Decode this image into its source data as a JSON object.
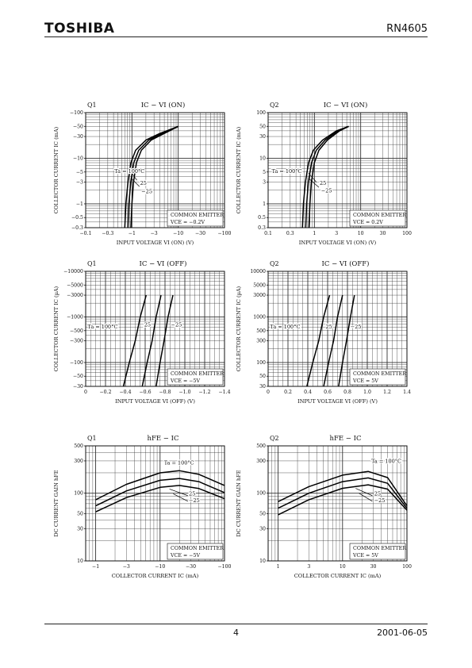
{
  "header": {
    "brand": "TOSHIBA",
    "part_number": "RN4605"
  },
  "footer": {
    "page": "4",
    "date": "2001-06-05"
  },
  "chart_data": [
    {
      "type": "line",
      "panel": "Q1",
      "title": "IC − VI (ON)",
      "xlabel": "INPUT VOLTAGE  VI (ON)  (V)",
      "ylabel": "COLLECTOR CURRENT  IC  (mA)",
      "xscale": "log",
      "yscale": "log",
      "xlim": [
        0.1,
        100
      ],
      "ylim": [
        0.3,
        100
      ],
      "x_ticks": [
        0.1,
        0.3,
        1,
        3,
        10,
        30,
        100
      ],
      "x_tick_labels": [
        "−0.1",
        "−0.3",
        "−1",
        "−3",
        "−10",
        "−30",
        "−100"
      ],
      "y_ticks": [
        0.3,
        0.5,
        1,
        3,
        5,
        10,
        30,
        50,
        100
      ],
      "y_tick_labels": [
        "−0.3",
        "−0.5",
        "−1",
        "−3",
        "−5",
        "−10",
        "−30",
        "−50",
        "−100"
      ],
      "conditions": [
        "COMMON EMITTER",
        "VCE = −0.2V"
      ],
      "series": [
        {
          "name": "Ta = 100°C",
          "points": [
            [
              0.7,
              0.3
            ],
            [
              0.74,
              1
            ],
            [
              0.82,
              3
            ],
            [
              0.95,
              8
            ],
            [
              1.2,
              15
            ],
            [
              2,
              25
            ],
            [
              4,
              35
            ],
            [
              10,
              50
            ]
          ]
        },
        {
          "name": "25",
          "points": [
            [
              0.82,
              0.3
            ],
            [
              0.86,
              1
            ],
            [
              0.94,
              3
            ],
            [
              1.1,
              8
            ],
            [
              1.4,
              15
            ],
            [
              2.3,
              25
            ],
            [
              4.5,
              35
            ],
            [
              10,
              50
            ]
          ]
        },
        {
          "name": "−25",
          "points": [
            [
              0.95,
              0.3
            ],
            [
              1.0,
              1
            ],
            [
              1.08,
              3
            ],
            [
              1.25,
              8
            ],
            [
              1.6,
              15
            ],
            [
              2.6,
              25
            ],
            [
              5,
              35
            ],
            [
              10,
              50
            ]
          ]
        }
      ],
      "labels": [
        {
          "text": "Ta = 100°C",
          "x": 0.42,
          "y": 4.8
        },
        {
          "text": "25",
          "x": 1.5,
          "y": 2.6
        },
        {
          "text": "−25",
          "x": 1.6,
          "y": 1.7
        }
      ],
      "pointers": [
        {
          "from": [
            0.98,
            4.8
          ],
          "to": [
            1.28,
            3.3
          ]
        },
        {
          "from": [
            1.0,
            3.5
          ],
          "to": [
            1.45,
            2.4
          ]
        }
      ]
    },
    {
      "type": "line",
      "panel": "Q2",
      "title": "IC − VI (ON)",
      "xlabel": "INPUT VOLTAGE  VI (ON)  (V)",
      "ylabel": "COLLECTOR CURRENT  IC  (mA)",
      "xscale": "log",
      "yscale": "log",
      "xlim": [
        0.1,
        100
      ],
      "ylim": [
        0.3,
        100
      ],
      "x_ticks": [
        0.1,
        0.3,
        1,
        3,
        10,
        30,
        100
      ],
      "x_tick_labels": [
        "0.1",
        "0.3",
        "1",
        "3",
        "10",
        "30",
        "100"
      ],
      "y_ticks": [
        0.3,
        0.5,
        1,
        3,
        5,
        10,
        30,
        50,
        100
      ],
      "y_tick_labels": [
        "0.3",
        "0.5",
        "1",
        "3",
        "5",
        "10",
        "30",
        "50",
        "100"
      ],
      "conditions": [
        "COMMON EMITTER",
        "VCE = 0.2V"
      ],
      "series": [
        {
          "name": "Ta = 100°C",
          "points": [
            [
              0.55,
              0.3
            ],
            [
              0.58,
              1
            ],
            [
              0.64,
              3
            ],
            [
              0.75,
              8
            ],
            [
              0.95,
              15
            ],
            [
              1.5,
              25
            ],
            [
              3,
              40
            ],
            [
              5.5,
              50
            ]
          ]
        },
        {
          "name": "25",
          "points": [
            [
              0.65,
              0.3
            ],
            [
              0.68,
              1
            ],
            [
              0.74,
              3
            ],
            [
              0.87,
              8
            ],
            [
              1.1,
              15
            ],
            [
              1.7,
              25
            ],
            [
              3.2,
              40
            ],
            [
              5.5,
              50
            ]
          ]
        },
        {
          "name": "−25",
          "points": [
            [
              0.76,
              0.3
            ],
            [
              0.8,
              1
            ],
            [
              0.86,
              3
            ],
            [
              1.0,
              8
            ],
            [
              1.25,
              15
            ],
            [
              1.9,
              25
            ],
            [
              3.5,
              40
            ],
            [
              5.5,
              50
            ]
          ]
        }
      ],
      "labels": [
        {
          "text": "Ta = 100°C",
          "x": 0.12,
          "y": 4.8
        },
        {
          "text": "25",
          "x": 1.3,
          "y": 2.6
        },
        {
          "text": "−25",
          "x": 1.4,
          "y": 1.8
        }
      ],
      "pointers": [
        {
          "from": [
            0.74,
            4.8
          ],
          "to": [
            1.1,
            3.0
          ]
        },
        {
          "from": [
            0.78,
            3.5
          ],
          "to": [
            1.25,
            2.3
          ]
        }
      ]
    },
    {
      "type": "line",
      "panel": "Q1",
      "title": "IC − VI (OFF)",
      "xlabel": "INPUT VOLTAGE  VI (OFF)  (V)",
      "ylabel": "COLLECTOR CURRENT  IC  (µA)",
      "xscale": "linear",
      "yscale": "log",
      "xlim": [
        0,
        1.4
      ],
      "ylim": [
        30,
        10000
      ],
      "x_ticks": [
        0,
        0.2,
        0.4,
        0.6,
        0.8,
        1.0,
        1.2,
        1.4
      ],
      "x_tick_labels": [
        "0",
        "−0.2",
        "−0.4",
        "−0.6",
        "−0.8",
        "−1.0",
        "−1.2",
        "−1.4"
      ],
      "y_ticks": [
        30,
        50,
        100,
        300,
        500,
        1000,
        3000,
        5000,
        10000
      ],
      "y_tick_labels": [
        "−30",
        "−50",
        "−100",
        "−300",
        "−500",
        "−1000",
        "−3000",
        "−5000",
        "−10000"
      ],
      "conditions": [
        "COMMON EMITTER",
        "VCE = −5V"
      ],
      "series": [
        {
          "name": "Ta = 100°C",
          "points": [
            [
              0.38,
              30
            ],
            [
              0.44,
              100
            ],
            [
              0.5,
              300
            ],
            [
              0.55,
              1000
            ],
            [
              0.61,
              3000
            ]
          ]
        },
        {
          "name": "25",
          "points": [
            [
              0.57,
              30
            ],
            [
              0.62,
              100
            ],
            [
              0.67,
              300
            ],
            [
              0.71,
              1000
            ],
            [
              0.76,
              3000
            ]
          ]
        },
        {
          "name": "−25",
          "points": [
            [
              0.71,
              30
            ],
            [
              0.75,
              100
            ],
            [
              0.79,
              300
            ],
            [
              0.83,
              1000
            ],
            [
              0.88,
              3000
            ]
          ]
        }
      ],
      "labels": [
        {
          "text": "Ta = 100°C",
          "x": 0.02,
          "y": 560
        },
        {
          "text": "25",
          "x": 0.59,
          "y": 620
        },
        {
          "text": "−25",
          "x": 0.86,
          "y": 620
        }
      ],
      "pointers": []
    },
    {
      "type": "line",
      "panel": "Q2",
      "title": "IC − VI (OFF)",
      "xlabel": "INPUT VOLTAGE  VI (OFF)  (V)",
      "ylabel": "COLLECTOR CURRENT  IC  (µA)",
      "xscale": "linear",
      "yscale": "log",
      "xlim": [
        0,
        1.4
      ],
      "ylim": [
        30,
        10000
      ],
      "x_ticks": [
        0,
        0.2,
        0.4,
        0.6,
        0.8,
        1.0,
        1.2,
        1.4
      ],
      "x_tick_labels": [
        "0",
        "0.2",
        "0.4",
        "0.6",
        "0.8",
        "1.0",
        "1.2",
        "1.4"
      ],
      "y_ticks": [
        30,
        50,
        100,
        300,
        500,
        1000,
        3000,
        5000,
        10000
      ],
      "y_tick_labels": [
        "30",
        "50",
        "100",
        "300",
        "500",
        "1000",
        "3000",
        "5000",
        "10000"
      ],
      "conditions": [
        "COMMON EMITTER",
        "VCE = 5V"
      ],
      "series": [
        {
          "name": "Ta = 100°C",
          "points": [
            [
              0.39,
              30
            ],
            [
              0.45,
              100
            ],
            [
              0.51,
              300
            ],
            [
              0.56,
              1000
            ],
            [
              0.62,
              3000
            ]
          ]
        },
        {
          "name": "25",
          "points": [
            [
              0.56,
              30
            ],
            [
              0.61,
              100
            ],
            [
              0.66,
              300
            ],
            [
              0.7,
              1000
            ],
            [
              0.75,
              3000
            ]
          ]
        },
        {
          "name": "−25",
          "points": [
            [
              0.71,
              30
            ],
            [
              0.75,
              100
            ],
            [
              0.79,
              300
            ],
            [
              0.83,
              1000
            ],
            [
              0.87,
              3000
            ]
          ]
        }
      ],
      "labels": [
        {
          "text": "Ta = 100°C",
          "x": 0.02,
          "y": 560
        },
        {
          "text": "25",
          "x": 0.58,
          "y": 560
        },
        {
          "text": "−25",
          "x": 0.83,
          "y": 560
        }
      ],
      "pointers": []
    },
    {
      "type": "line",
      "panel": "Q1",
      "title": "hFE − IC",
      "xlabel": "COLLECTOR CURRENT  IC  (mA)",
      "ylabel": "DC CURRENT GAIN  hFE",
      "xscale": "log",
      "yscale": "log",
      "xlim": [
        0.7,
        100
      ],
      "ylim": [
        10,
        500
      ],
      "x_ticks": [
        1,
        3,
        10,
        30,
        100
      ],
      "x_tick_labels": [
        "−1",
        "−3",
        "−10",
        "−30",
        "−100"
      ],
      "y_ticks": [
        10,
        30,
        50,
        100,
        300,
        500
      ],
      "y_tick_labels": [
        "10",
        "30",
        "50",
        "100",
        "300",
        "500"
      ],
      "conditions": [
        "COMMON EMITTER",
        "VCE = −5V"
      ],
      "series": [
        {
          "name": "Ta = 100°C",
          "points": [
            [
              1,
              80
            ],
            [
              3,
              135
            ],
            [
              10,
              200
            ],
            [
              20,
              215
            ],
            [
              40,
              190
            ],
            [
              100,
              130
            ]
          ]
        },
        {
          "name": "25",
          "points": [
            [
              1,
              65
            ],
            [
              3,
              108
            ],
            [
              10,
              155
            ],
            [
              20,
              165
            ],
            [
              40,
              148
            ],
            [
              100,
              102
            ]
          ]
        },
        {
          "name": "−25",
          "points": [
            [
              1,
              53
            ],
            [
              3,
              86
            ],
            [
              10,
              122
            ],
            [
              20,
              130
            ],
            [
              40,
              117
            ],
            [
              100,
              83
            ]
          ]
        }
      ],
      "labels": [
        {
          "text": "Ta = 100°C",
          "x": 11.5,
          "y": 265
        },
        {
          "text": "25",
          "x": 28,
          "y": 92
        },
        {
          "text": "−25",
          "x": 28,
          "y": 74
        }
      ],
      "pointers": [
        {
          "from": [
            14,
            115
          ],
          "to": [
            27,
            92
          ]
        },
        {
          "from": [
            16,
            98
          ],
          "to": [
            27,
            76
          ]
        }
      ]
    },
    {
      "type": "line",
      "panel": "Q2",
      "title": "hFE − IC",
      "xlabel": "COLLECTOR CURRENT  IC  (mA)",
      "ylabel": "DC CURRENT GAIN  hFE",
      "xscale": "log",
      "yscale": "log",
      "xlim": [
        0.7,
        100
      ],
      "ylim": [
        10,
        500
      ],
      "x_ticks": [
        1,
        3,
        10,
        30,
        100
      ],
      "x_tick_labels": [
        "1",
        "3",
        "10",
        "30",
        "100"
      ],
      "y_ticks": [
        10,
        30,
        50,
        100,
        300,
        500
      ],
      "y_tick_labels": [
        "10",
        "30",
        "50",
        "100",
        "300",
        "500"
      ],
      "conditions": [
        "COMMON EMITTER",
        "VCE = 5V"
      ],
      "series": [
        {
          "name": "Ta = 100°C",
          "points": [
            [
              1,
              75
            ],
            [
              3,
              125
            ],
            [
              10,
              185
            ],
            [
              25,
              210
            ],
            [
              50,
              170
            ],
            [
              100,
              65
            ]
          ]
        },
        {
          "name": "25",
          "points": [
            [
              1,
              60
            ],
            [
              3,
              100
            ],
            [
              10,
              148
            ],
            [
              25,
              168
            ],
            [
              50,
              140
            ],
            [
              100,
              60
            ]
          ]
        },
        {
          "name": "−25",
          "points": [
            [
              1,
              48
            ],
            [
              3,
              80
            ],
            [
              10,
              118
            ],
            [
              25,
              133
            ],
            [
              50,
              115
            ],
            [
              100,
              56
            ]
          ]
        }
      ],
      "labels": [
        {
          "text": "Ta = 100°C",
          "x": 28,
          "y": 280
        },
        {
          "text": "25",
          "x": 31,
          "y": 92
        },
        {
          "text": "−25",
          "x": 31,
          "y": 74
        }
      ],
      "pointers": [
        {
          "from": [
            16,
            118
          ],
          "to": [
            29,
            92
          ]
        },
        {
          "from": [
            18,
            100
          ],
          "to": [
            29,
            76
          ]
        }
      ]
    }
  ]
}
